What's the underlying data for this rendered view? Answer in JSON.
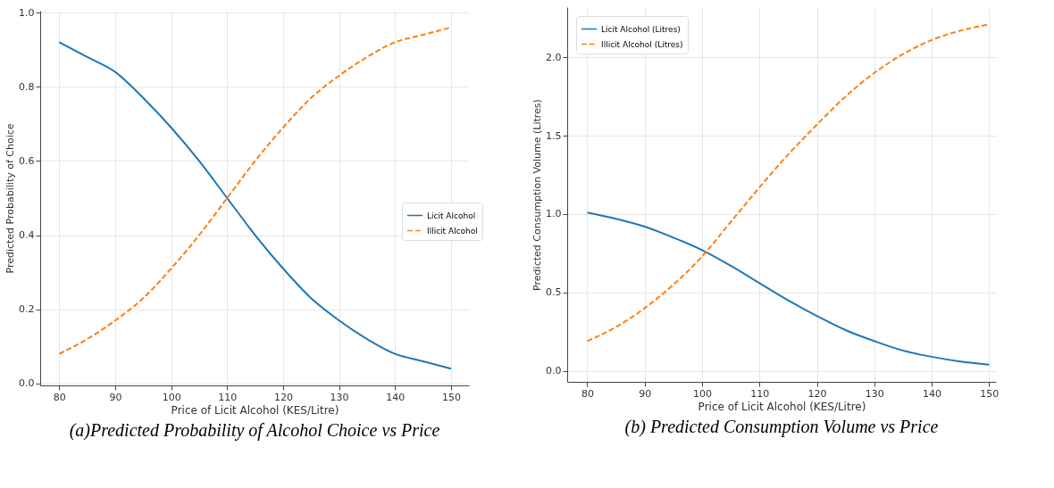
{
  "chart_data": [
    {
      "type": "line",
      "title": "(a)Predicted Probability of Alcohol Choice vs Price",
      "xlabel": "Price of Licit Alcohol (KES/Litre)",
      "ylabel": "Predicted Probability of Choice",
      "x": [
        80,
        85,
        90,
        95,
        100,
        105,
        110,
        115,
        120,
        125,
        130,
        135,
        140,
        145,
        150
      ],
      "series": [
        {
          "name": "Licit Alcohol",
          "color": "#1f77b4",
          "line_style": "solid",
          "values": [
            0.92,
            0.88,
            0.84,
            0.77,
            0.69,
            0.6,
            0.5,
            0.4,
            0.31,
            0.23,
            0.17,
            0.12,
            0.08,
            0.06,
            0.04
          ]
        },
        {
          "name": "Illicit Alcohol",
          "color": "#ff7f0e",
          "line_style": "dashed",
          "values": [
            0.08,
            0.12,
            0.17,
            0.23,
            0.31,
            0.4,
            0.5,
            0.6,
            0.69,
            0.77,
            0.83,
            0.88,
            0.92,
            0.94,
            0.96
          ]
        }
      ],
      "xlim": [
        76.6,
        153.2
      ],
      "xticks": [
        80,
        90,
        100,
        110,
        120,
        130,
        140,
        150
      ],
      "ylim": [
        -0.005,
        1.005
      ],
      "yticks": [
        {
          "value": 0,
          "label": "0.0"
        },
        0.2,
        0.4,
        0.6,
        0.8,
        {
          "value": 1,
          "label": "1.0"
        }
      ],
      "grid": true,
      "legend": "right"
    },
    {
      "type": "line",
      "title": "(b) Predicted Consumption Volume vs Price",
      "xlabel": "Price of Licit Alcohol (KES/Litre)",
      "ylabel": "Predicted Consumption Volume (Litres)",
      "x": [
        80,
        85,
        90,
        95,
        100,
        105,
        110,
        115,
        120,
        125,
        130,
        135,
        140,
        145,
        150
      ],
      "series": [
        {
          "name": "Licit Alcohol (Litres)",
          "color": "#1f77b4",
          "line_style": "solid",
          "values": [
            1.01,
            0.97,
            0.92,
            0.85,
            0.77,
            0.67,
            0.56,
            0.45,
            0.35,
            0.26,
            0.19,
            0.13,
            0.09,
            0.06,
            0.04
          ]
        },
        {
          "name": "Illicit Alcohol (Litres)",
          "color": "#ff7f0e",
          "line_style": "dashed",
          "values": [
            0.19,
            0.28,
            0.4,
            0.55,
            0.73,
            0.95,
            1.17,
            1.38,
            1.57,
            1.75,
            1.9,
            2.02,
            2.11,
            2.17,
            2.21
          ]
        }
      ],
      "xlim": [
        76.5,
        151.2
      ],
      "xticks": [
        80,
        90,
        100,
        110,
        120,
        130,
        140,
        150
      ],
      "ylim": [
        -0.07,
        2.32
      ],
      "yticks": [
        {
          "value": 0,
          "label": "0.0"
        },
        0.5,
        {
          "value": 1,
          "label": "1.0"
        },
        1.5,
        {
          "value": 2,
          "label": "2.0"
        }
      ],
      "grid": true,
      "legend": "top left"
    }
  ]
}
